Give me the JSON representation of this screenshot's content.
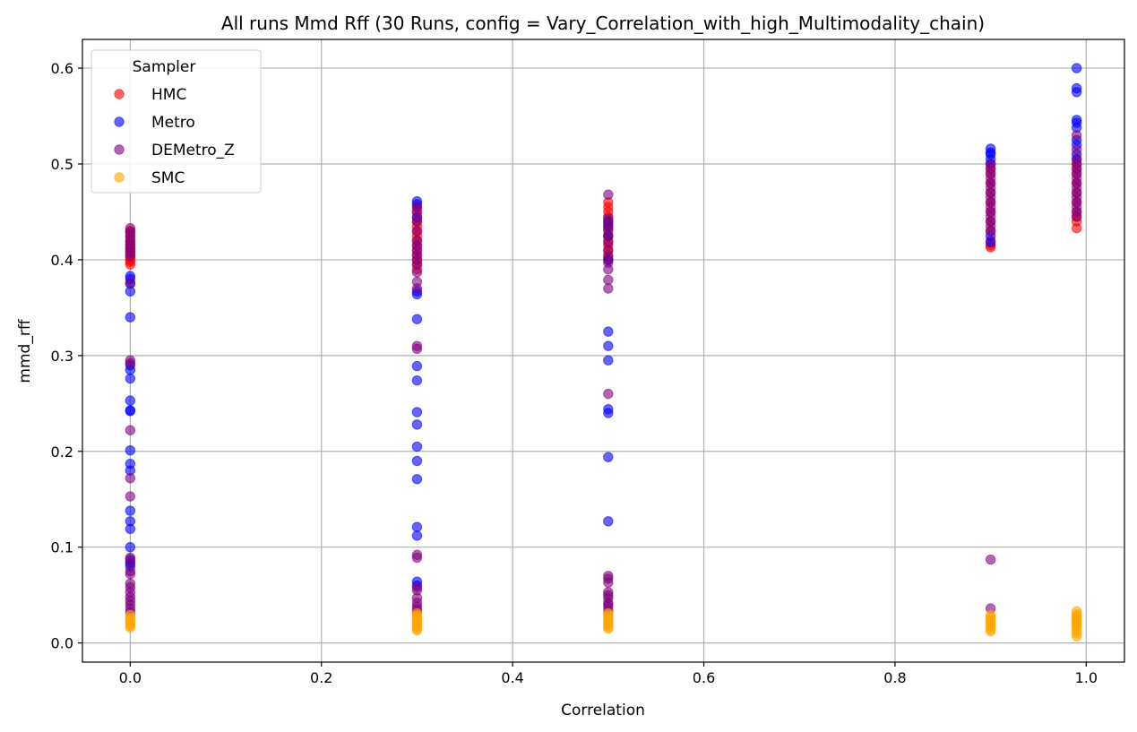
{
  "chart_data": {
    "type": "scatter",
    "title": "All runs Mmd Rff (30 Runs, config = Vary_Correlation_with_high_Multimodality_chain)",
    "xlabel": "Correlation",
    "ylabel": "mmd_rff",
    "xlim": [
      -0.05,
      1.04
    ],
    "ylim": [
      -0.02,
      0.63
    ],
    "xticks": [
      0.0,
      0.2,
      0.4,
      0.6,
      0.8,
      1.0
    ],
    "xtick_labels": [
      "0.0",
      "0.2",
      "0.4",
      "0.6",
      "0.8",
      "1.0"
    ],
    "yticks": [
      0.0,
      0.1,
      0.2,
      0.3,
      0.4,
      0.5,
      0.6
    ],
    "ytick_labels": [
      "0.0",
      "0.1",
      "0.2",
      "0.3",
      "0.4",
      "0.5",
      "0.6"
    ],
    "grid": true,
    "legend": {
      "title": "Sampler",
      "placement": "top-left"
    },
    "series": [
      {
        "name": "HMC",
        "color": "#ff0000",
        "points": [
          [
            0.0,
            0.395
          ],
          [
            0.0,
            0.398
          ],
          [
            0.0,
            0.4
          ],
          [
            0.0,
            0.403
          ],
          [
            0.0,
            0.405
          ],
          [
            0.0,
            0.408
          ],
          [
            0.0,
            0.41
          ],
          [
            0.0,
            0.412
          ],
          [
            0.0,
            0.415
          ],
          [
            0.0,
            0.418
          ],
          [
            0.0,
            0.42
          ],
          [
            0.0,
            0.425
          ],
          [
            0.0,
            0.43
          ],
          [
            0.0,
            0.43
          ],
          [
            0.3,
            0.39
          ],
          [
            0.3,
            0.395
          ],
          [
            0.3,
            0.4
          ],
          [
            0.3,
            0.405
          ],
          [
            0.3,
            0.41
          ],
          [
            0.3,
            0.415
          ],
          [
            0.3,
            0.42
          ],
          [
            0.3,
            0.425
          ],
          [
            0.3,
            0.43
          ],
          [
            0.3,
            0.435
          ],
          [
            0.3,
            0.44
          ],
          [
            0.3,
            0.445
          ],
          [
            0.3,
            0.45
          ],
          [
            0.3,
            0.455
          ],
          [
            0.5,
            0.4
          ],
          [
            0.5,
            0.405
          ],
          [
            0.5,
            0.41
          ],
          [
            0.5,
            0.415
          ],
          [
            0.5,
            0.42
          ],
          [
            0.5,
            0.425
          ],
          [
            0.5,
            0.43
          ],
          [
            0.5,
            0.435
          ],
          [
            0.5,
            0.44
          ],
          [
            0.5,
            0.445
          ],
          [
            0.5,
            0.45
          ],
          [
            0.5,
            0.455
          ],
          [
            0.5,
            0.46
          ],
          [
            0.9,
            0.413
          ],
          [
            0.9,
            0.415
          ],
          [
            0.9,
            0.42
          ],
          [
            0.9,
            0.43
          ],
          [
            0.9,
            0.44
          ],
          [
            0.9,
            0.45
          ],
          [
            0.9,
            0.46
          ],
          [
            0.9,
            0.47
          ],
          [
            0.9,
            0.48
          ],
          [
            0.9,
            0.49
          ],
          [
            0.9,
            0.495
          ],
          [
            0.99,
            0.433
          ],
          [
            0.99,
            0.44
          ],
          [
            0.99,
            0.445
          ],
          [
            0.99,
            0.45
          ],
          [
            0.99,
            0.46
          ],
          [
            0.99,
            0.47
          ],
          [
            0.99,
            0.48
          ],
          [
            0.99,
            0.49
          ],
          [
            0.99,
            0.495
          ],
          [
            0.99,
            0.5
          ]
        ]
      },
      {
        "name": "Metro",
        "color": "#0000ff",
        "points": [
          [
            0.0,
            0.383
          ],
          [
            0.0,
            0.38
          ],
          [
            0.0,
            0.375
          ],
          [
            0.0,
            0.367
          ],
          [
            0.0,
            0.34
          ],
          [
            0.0,
            0.29
          ],
          [
            0.0,
            0.285
          ],
          [
            0.0,
            0.276
          ],
          [
            0.0,
            0.253
          ],
          [
            0.0,
            0.243
          ],
          [
            0.0,
            0.242
          ],
          [
            0.0,
            0.201
          ],
          [
            0.0,
            0.187
          ],
          [
            0.0,
            0.18
          ],
          [
            0.0,
            0.138
          ],
          [
            0.0,
            0.127
          ],
          [
            0.0,
            0.119
          ],
          [
            0.0,
            0.1
          ],
          [
            0.0,
            0.087
          ],
          [
            0.0,
            0.083
          ],
          [
            0.0,
            0.08
          ],
          [
            0.3,
            0.461
          ],
          [
            0.3,
            0.458
          ],
          [
            0.3,
            0.444
          ],
          [
            0.3,
            0.367
          ],
          [
            0.3,
            0.364
          ],
          [
            0.3,
            0.338
          ],
          [
            0.3,
            0.289
          ],
          [
            0.3,
            0.274
          ],
          [
            0.3,
            0.241
          ],
          [
            0.3,
            0.228
          ],
          [
            0.3,
            0.205
          ],
          [
            0.3,
            0.19
          ],
          [
            0.3,
            0.171
          ],
          [
            0.3,
            0.121
          ],
          [
            0.3,
            0.112
          ],
          [
            0.3,
            0.064
          ],
          [
            0.3,
            0.06
          ],
          [
            0.5,
            0.44
          ],
          [
            0.5,
            0.435
          ],
          [
            0.5,
            0.425
          ],
          [
            0.5,
            0.4
          ],
          [
            0.5,
            0.325
          ],
          [
            0.5,
            0.31
          ],
          [
            0.5,
            0.295
          ],
          [
            0.5,
            0.244
          ],
          [
            0.5,
            0.24
          ],
          [
            0.5,
            0.194
          ],
          [
            0.5,
            0.127
          ],
          [
            0.9,
            0.516
          ],
          [
            0.9,
            0.512
          ],
          [
            0.9,
            0.51
          ],
          [
            0.9,
            0.505
          ],
          [
            0.9,
            0.5
          ],
          [
            0.9,
            0.425
          ],
          [
            0.9,
            0.418
          ],
          [
            0.99,
            0.6
          ],
          [
            0.99,
            0.579
          ],
          [
            0.99,
            0.575
          ],
          [
            0.99,
            0.546
          ],
          [
            0.99,
            0.543
          ],
          [
            0.99,
            0.538
          ],
          [
            0.99,
            0.525
          ],
          [
            0.99,
            0.52
          ],
          [
            0.99,
            0.51
          ],
          [
            0.99,
            0.505
          ]
        ]
      },
      {
        "name": "DEMetro_Z",
        "color": "#800080",
        "points": [
          [
            0.0,
            0.433
          ],
          [
            0.0,
            0.428
          ],
          [
            0.0,
            0.424
          ],
          [
            0.0,
            0.42
          ],
          [
            0.0,
            0.416
          ],
          [
            0.0,
            0.412
          ],
          [
            0.0,
            0.408
          ],
          [
            0.0,
            0.404
          ],
          [
            0.0,
            0.376
          ],
          [
            0.0,
            0.295
          ],
          [
            0.0,
            0.292
          ],
          [
            0.0,
            0.222
          ],
          [
            0.0,
            0.172
          ],
          [
            0.0,
            0.153
          ],
          [
            0.0,
            0.089
          ],
          [
            0.0,
            0.085
          ],
          [
            0.0,
            0.075
          ],
          [
            0.0,
            0.072
          ],
          [
            0.0,
            0.062
          ],
          [
            0.0,
            0.058
          ],
          [
            0.0,
            0.053
          ],
          [
            0.0,
            0.048
          ],
          [
            0.0,
            0.044
          ],
          [
            0.0,
            0.04
          ],
          [
            0.0,
            0.036
          ],
          [
            0.0,
            0.032
          ],
          [
            0.3,
            0.455
          ],
          [
            0.3,
            0.45
          ],
          [
            0.3,
            0.44
          ],
          [
            0.3,
            0.43
          ],
          [
            0.3,
            0.42
          ],
          [
            0.3,
            0.415
          ],
          [
            0.3,
            0.41
          ],
          [
            0.3,
            0.405
          ],
          [
            0.3,
            0.4
          ],
          [
            0.3,
            0.395
          ],
          [
            0.3,
            0.387
          ],
          [
            0.3,
            0.377
          ],
          [
            0.3,
            0.37
          ],
          [
            0.3,
            0.31
          ],
          [
            0.3,
            0.307
          ],
          [
            0.3,
            0.092
          ],
          [
            0.3,
            0.089
          ],
          [
            0.3,
            0.058
          ],
          [
            0.3,
            0.055
          ],
          [
            0.3,
            0.047
          ],
          [
            0.3,
            0.042
          ],
          [
            0.3,
            0.038
          ],
          [
            0.3,
            0.035
          ],
          [
            0.3,
            0.032
          ],
          [
            0.5,
            0.468
          ],
          [
            0.5,
            0.443
          ],
          [
            0.5,
            0.438
          ],
          [
            0.5,
            0.432
          ],
          [
            0.5,
            0.425
          ],
          [
            0.5,
            0.418
          ],
          [
            0.5,
            0.41
          ],
          [
            0.5,
            0.403
          ],
          [
            0.5,
            0.397
          ],
          [
            0.5,
            0.39
          ],
          [
            0.5,
            0.379
          ],
          [
            0.5,
            0.37
          ],
          [
            0.5,
            0.26
          ],
          [
            0.5,
            0.07
          ],
          [
            0.5,
            0.067
          ],
          [
            0.5,
            0.063
          ],
          [
            0.5,
            0.053
          ],
          [
            0.5,
            0.05
          ],
          [
            0.5,
            0.047
          ],
          [
            0.5,
            0.042
          ],
          [
            0.5,
            0.04
          ],
          [
            0.5,
            0.037
          ],
          [
            0.5,
            0.033
          ],
          [
            0.9,
            0.5
          ],
          [
            0.9,
            0.495
          ],
          [
            0.9,
            0.49
          ],
          [
            0.9,
            0.485
          ],
          [
            0.9,
            0.48
          ],
          [
            0.9,
            0.475
          ],
          [
            0.9,
            0.47
          ],
          [
            0.9,
            0.465
          ],
          [
            0.9,
            0.46
          ],
          [
            0.9,
            0.455
          ],
          [
            0.9,
            0.45
          ],
          [
            0.9,
            0.445
          ],
          [
            0.9,
            0.44
          ],
          [
            0.9,
            0.435
          ],
          [
            0.9,
            0.43
          ],
          [
            0.9,
            0.087
          ],
          [
            0.9,
            0.036
          ],
          [
            0.99,
            0.53
          ],
          [
            0.99,
            0.515
          ],
          [
            0.99,
            0.505
          ],
          [
            0.99,
            0.5
          ],
          [
            0.99,
            0.495
          ],
          [
            0.99,
            0.49
          ],
          [
            0.99,
            0.485
          ],
          [
            0.99,
            0.48
          ],
          [
            0.99,
            0.475
          ],
          [
            0.99,
            0.47
          ],
          [
            0.99,
            0.465
          ],
          [
            0.99,
            0.46
          ],
          [
            0.99,
            0.455
          ],
          [
            0.99,
            0.45
          ],
          [
            0.99,
            0.445
          ]
        ]
      },
      {
        "name": "SMC",
        "color": "#ffa500",
        "points": [
          [
            0.0,
            0.029
          ],
          [
            0.0,
            0.026
          ],
          [
            0.0,
            0.024
          ],
          [
            0.0,
            0.022
          ],
          [
            0.0,
            0.02
          ],
          [
            0.0,
            0.018
          ],
          [
            0.0,
            0.016
          ],
          [
            0.3,
            0.031
          ],
          [
            0.3,
            0.029
          ],
          [
            0.3,
            0.027
          ],
          [
            0.3,
            0.025
          ],
          [
            0.3,
            0.023
          ],
          [
            0.3,
            0.021
          ],
          [
            0.3,
            0.019
          ],
          [
            0.3,
            0.017
          ],
          [
            0.3,
            0.015
          ],
          [
            0.3,
            0.013
          ],
          [
            0.5,
            0.031
          ],
          [
            0.5,
            0.029
          ],
          [
            0.5,
            0.027
          ],
          [
            0.5,
            0.025
          ],
          [
            0.5,
            0.023
          ],
          [
            0.5,
            0.021
          ],
          [
            0.5,
            0.019
          ],
          [
            0.5,
            0.017
          ],
          [
            0.5,
            0.015
          ],
          [
            0.9,
            0.029
          ],
          [
            0.9,
            0.027
          ],
          [
            0.9,
            0.025
          ],
          [
            0.9,
            0.023
          ],
          [
            0.9,
            0.021
          ],
          [
            0.9,
            0.019
          ],
          [
            0.9,
            0.017
          ],
          [
            0.9,
            0.014
          ],
          [
            0.9,
            0.012
          ],
          [
            0.99,
            0.033
          ],
          [
            0.99,
            0.03
          ],
          [
            0.99,
            0.028
          ],
          [
            0.99,
            0.026
          ],
          [
            0.99,
            0.024
          ],
          [
            0.99,
            0.022
          ],
          [
            0.99,
            0.02
          ],
          [
            0.99,
            0.018
          ],
          [
            0.99,
            0.016
          ],
          [
            0.99,
            0.013
          ],
          [
            0.99,
            0.01
          ],
          [
            0.99,
            0.007
          ]
        ]
      }
    ]
  }
}
